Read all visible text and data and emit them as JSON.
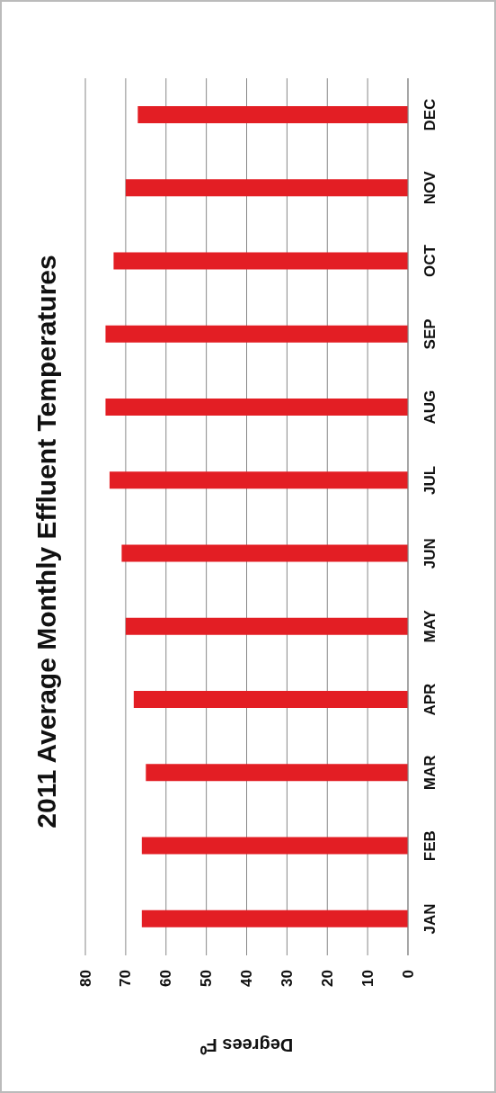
{
  "chart_data": {
    "type": "bar",
    "orientation": "horizontal",
    "title": "2011 Average Monthly Effluent Temperatures",
    "xlabel": "Degrees F⁰",
    "categories": [
      "DEC",
      "NOV",
      "OCT",
      "SEP",
      "AUG",
      "JUL",
      "JUN",
      "MAY",
      "APR",
      "MAR",
      "FEB",
      "JAN"
    ],
    "values": [
      67,
      70,
      73,
      75,
      75,
      74,
      71,
      70,
      68,
      65,
      66,
      66
    ],
    "color": "#e31e24",
    "xlim": [
      80,
      0
    ],
    "xticks": [
      80,
      70,
      60,
      50,
      40,
      30,
      20,
      10,
      0
    ],
    "grid": "x"
  }
}
